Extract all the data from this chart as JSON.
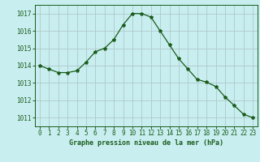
{
  "x": [
    0,
    1,
    2,
    3,
    4,
    5,
    6,
    7,
    8,
    9,
    10,
    11,
    12,
    13,
    14,
    15,
    16,
    17,
    18,
    19,
    20,
    21,
    22,
    23
  ],
  "y": [
    1014.0,
    1013.8,
    1013.6,
    1013.6,
    1013.7,
    1014.2,
    1014.8,
    1015.0,
    1015.5,
    1016.35,
    1017.0,
    1017.0,
    1016.8,
    1016.0,
    1015.2,
    1014.4,
    1013.8,
    1013.2,
    1013.05,
    1012.8,
    1012.2,
    1011.7,
    1011.2,
    1011.0
  ],
  "line_color": "#1a5c1a",
  "marker": "*",
  "marker_size": 3,
  "bg_color": "#c8eef0",
  "grid_color_major": "#b0c8ca",
  "grid_color_minor": "#c0dde0",
  "ylabel_ticks": [
    1011,
    1012,
    1013,
    1014,
    1015,
    1016,
    1017
  ],
  "xlabel_label": "Graphe pression niveau de la mer (hPa)",
  "xlabel_color": "#1a5c1a",
  "tick_color": "#1a5c1a",
  "ylim": [
    1010.5,
    1017.5
  ],
  "xlim": [
    -0.5,
    23.5
  ],
  "tick_fontsize": 5.5,
  "xlabel_fontsize": 6.0
}
